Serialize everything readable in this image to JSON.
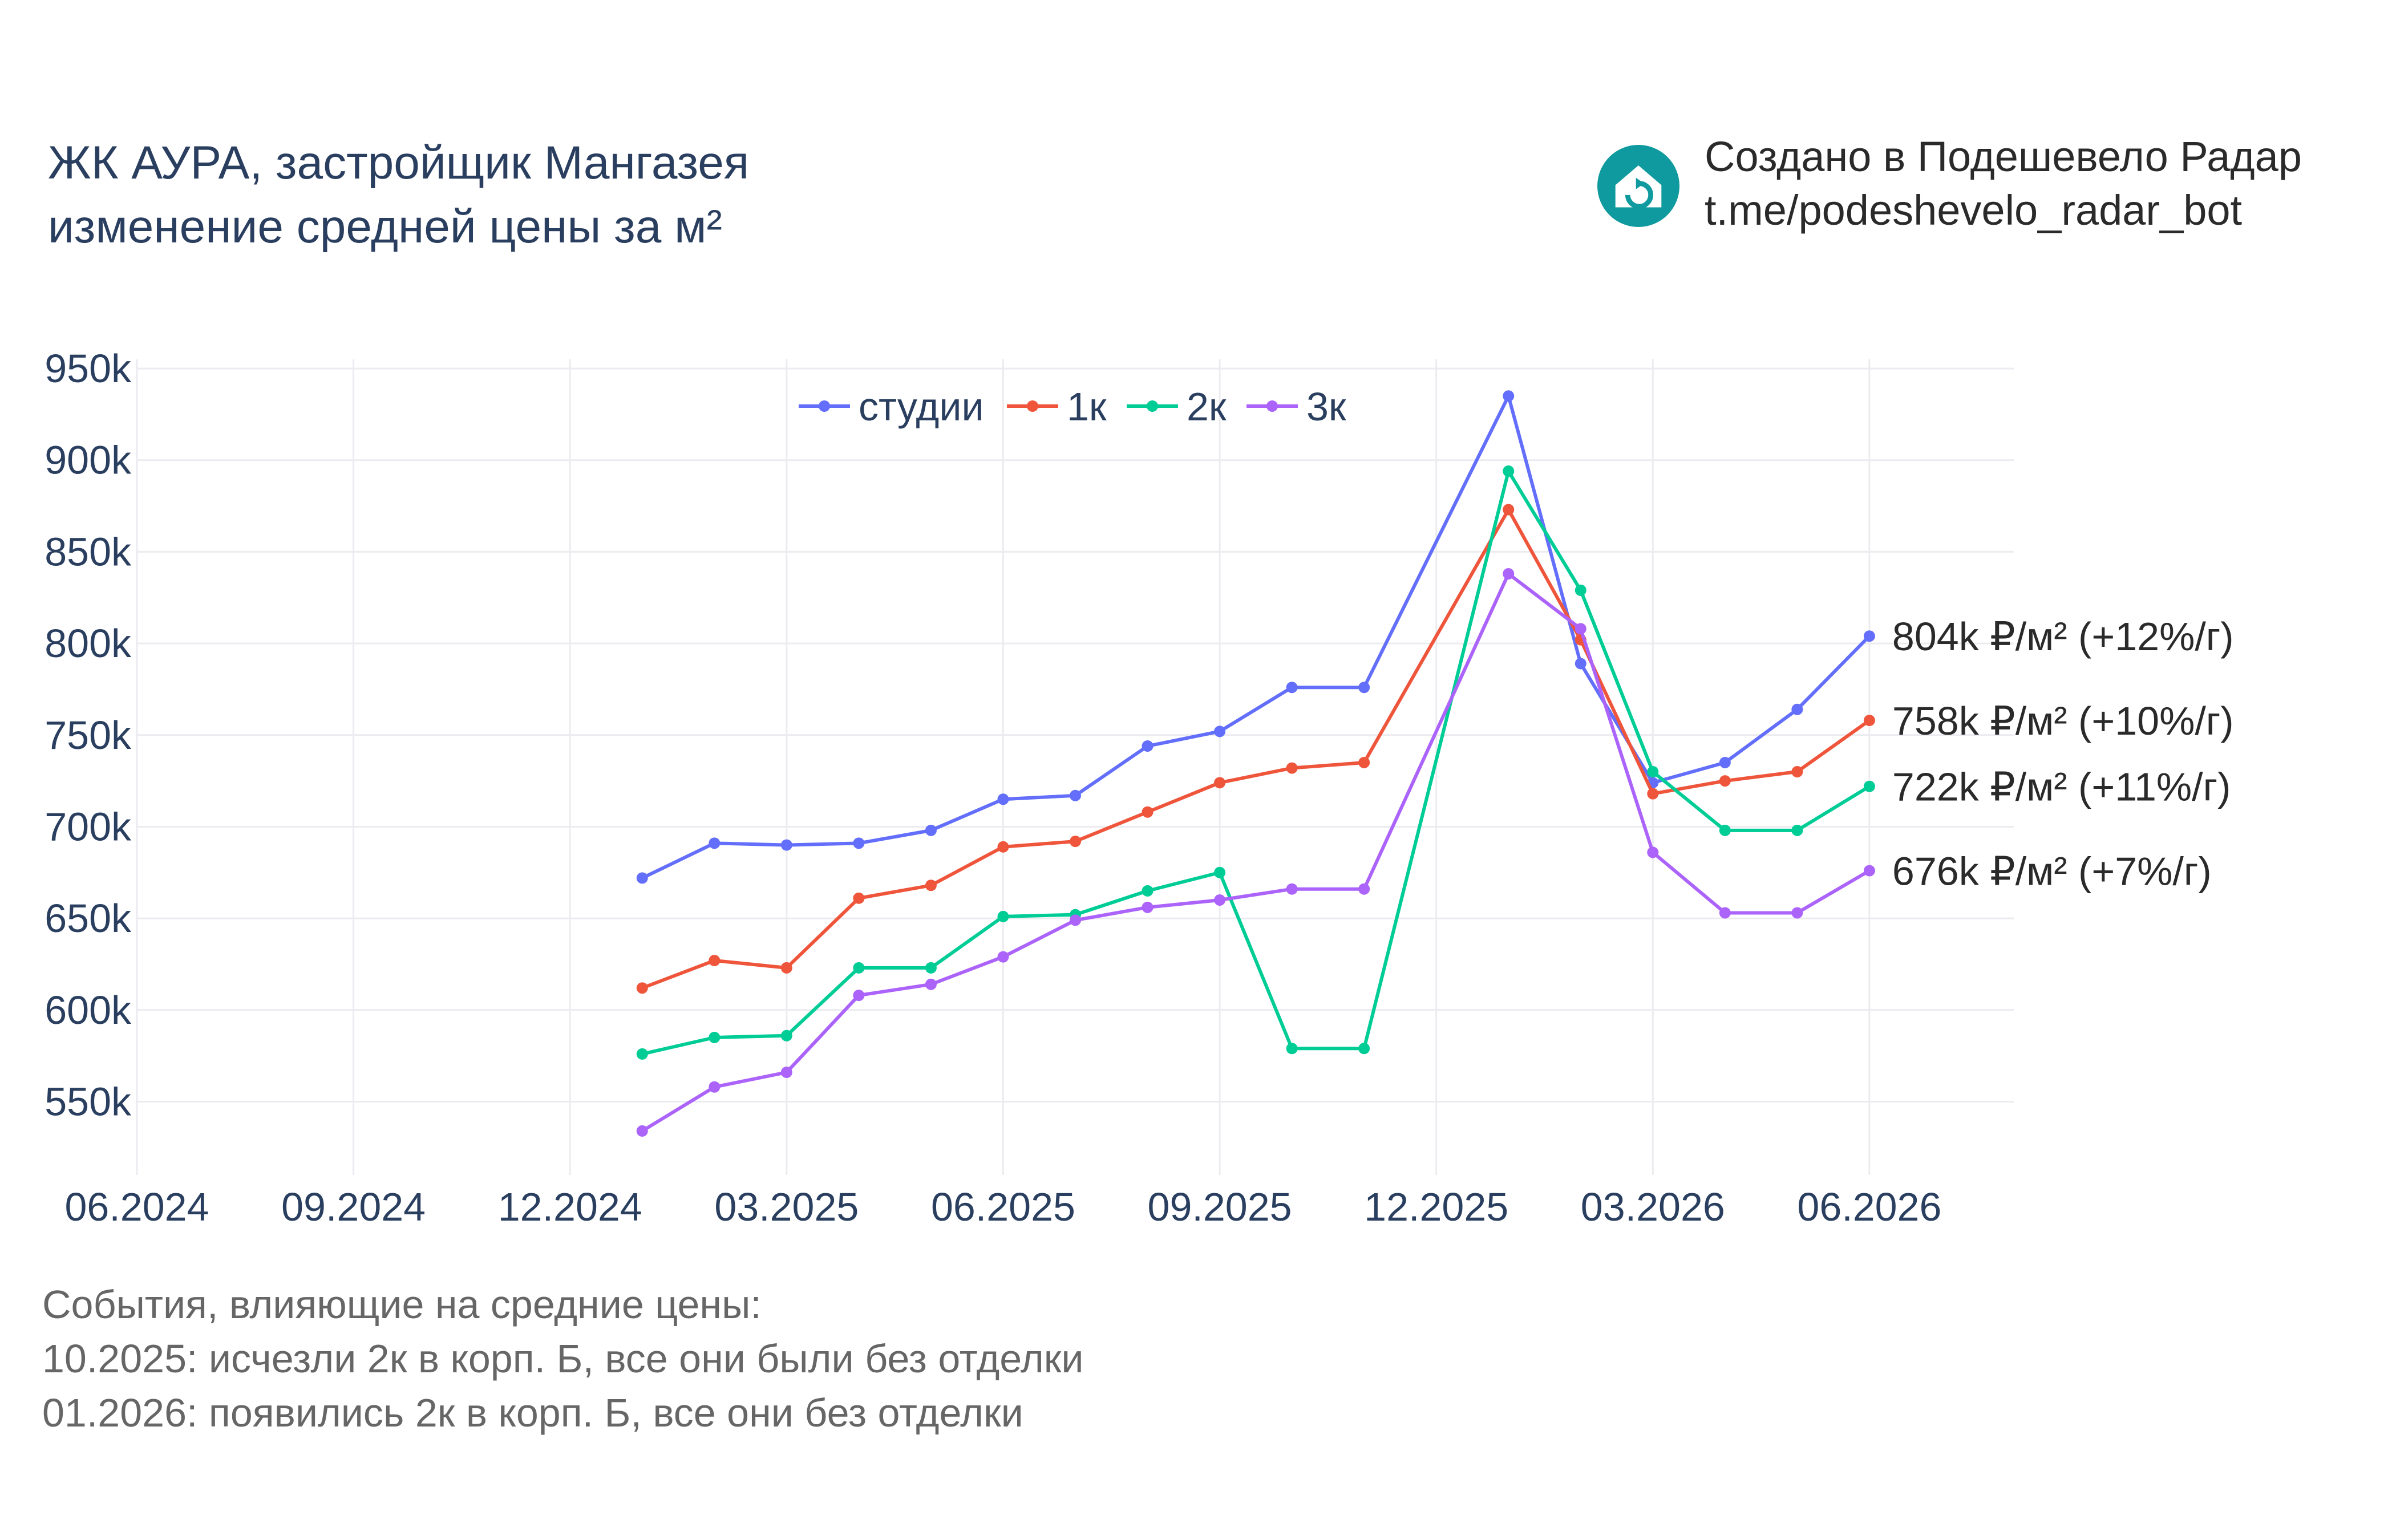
{
  "title": {
    "line1": "ЖК АУРА, застройщик Мангазея",
    "line2": "изменение средней цены за м²"
  },
  "brand": {
    "line1": "Создано в Подешевело Радар",
    "line2": "t.me/podeshevelo_radar_bot",
    "logo_icon": "house-refresh-icon",
    "logo_color": "#0e9a9e"
  },
  "notes": {
    "heading": "События, влияющие на средние цены:",
    "items": [
      "10.2025: исчезли 2к в корп. Б, все они были без отделки",
      "01.2026: появились 2к в корп. Б, все они без отделки"
    ]
  },
  "chart_data": {
    "type": "line",
    "x": [
      "01.2025",
      "02.2025",
      "03.2025",
      "04.2025",
      "05.2025",
      "06.2025",
      "07.2025",
      "08.2025",
      "09.2025",
      "10.2025",
      "11.2025",
      "01.2026",
      "02.2026",
      "03.2026",
      "04.2026",
      "05.2026",
      "06.2026"
    ],
    "x_ticks": [
      "06.2024",
      "09.2024",
      "12.2024",
      "03.2025",
      "06.2025",
      "09.2025",
      "12.2025",
      "03.2026",
      "06.2026"
    ],
    "x_range": [
      "06.2024",
      "08.2026"
    ],
    "y_ticks": [
      550000,
      600000,
      650000,
      700000,
      750000,
      800000,
      850000,
      900000,
      950000
    ],
    "y_tick_labels": [
      "550k",
      "600k",
      "650k",
      "700k",
      "750k",
      "800k",
      "850k",
      "900k",
      "950k"
    ],
    "y_range": [
      510000,
      955000
    ],
    "grid": true,
    "legend_position": "top-center",
    "series": [
      {
        "name": "студии",
        "color": "#636efa",
        "values": [
          672000,
          691000,
          690000,
          691000,
          698000,
          715000,
          717000,
          744000,
          752000,
          776000,
          776000,
          935000,
          789000,
          724000,
          735000,
          764000,
          804000
        ],
        "end_label": "804k ₽/м² (+12%/г)"
      },
      {
        "name": "1к",
        "color": "#ef553b",
        "values": [
          612000,
          627000,
          623000,
          661000,
          668000,
          689000,
          692000,
          708000,
          724000,
          732000,
          735000,
          873000,
          802000,
          718000,
          725000,
          730000,
          758000
        ],
        "end_label": "758k ₽/м² (+10%/г)"
      },
      {
        "name": "2к",
        "color": "#00cc96",
        "values": [
          576000,
          585000,
          586000,
          623000,
          623000,
          651000,
          652000,
          665000,
          675000,
          579000,
          579000,
          894000,
          829000,
          730000,
          698000,
          698000,
          722000
        ],
        "end_label": "722k ₽/м² (+11%/г)"
      },
      {
        "name": "3к",
        "color": "#ab63fa",
        "values": [
          534000,
          558000,
          566000,
          608000,
          614000,
          629000,
          649000,
          656000,
          660000,
          666000,
          666000,
          838000,
          808000,
          686000,
          653000,
          653000,
          676000
        ],
        "end_label": "676k ₽/м² (+7%/г)"
      }
    ]
  }
}
